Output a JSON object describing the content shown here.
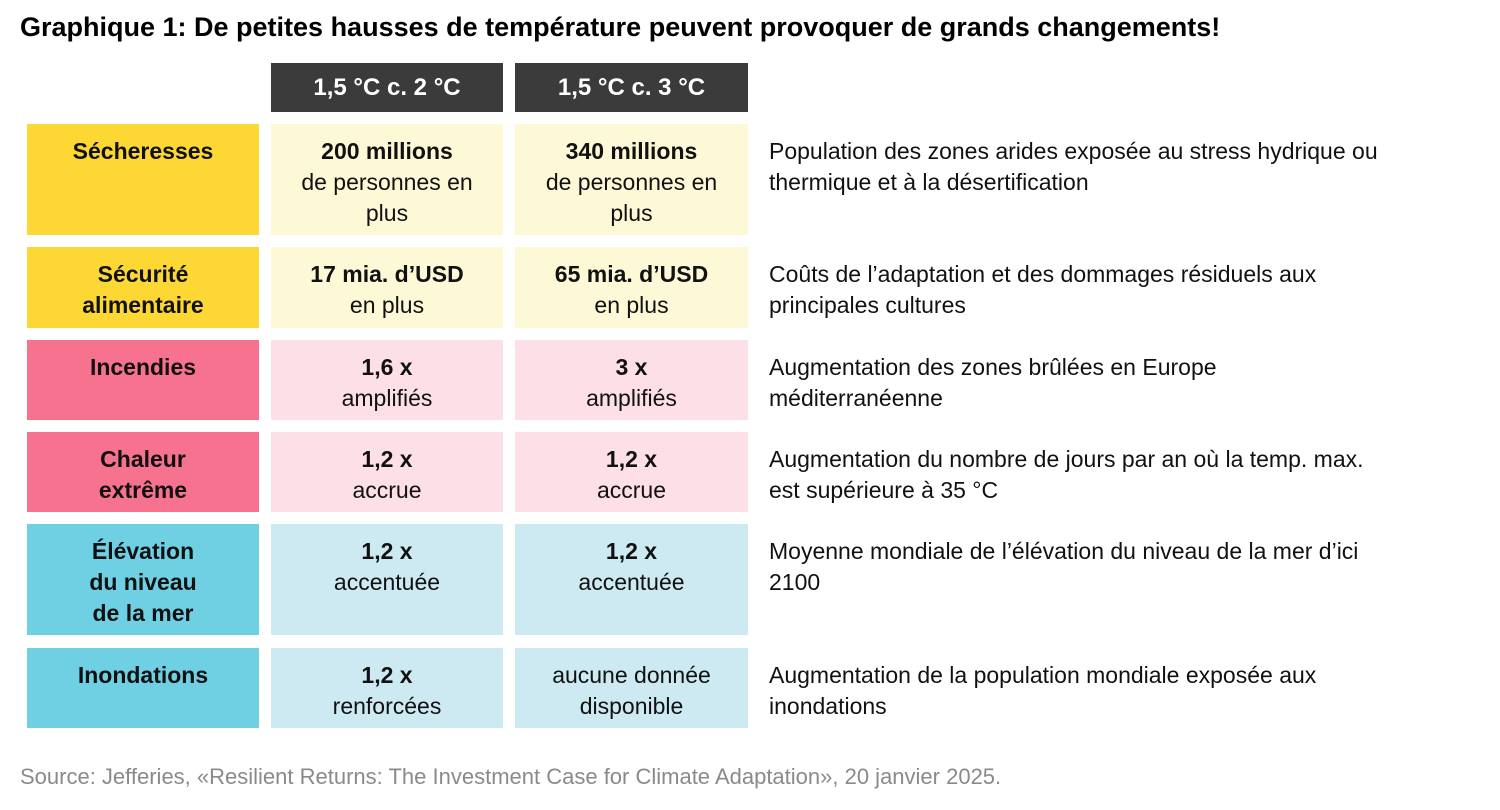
{
  "title": "Graphique 1: De petites hausses de température peuvent provoquer de grands changements!",
  "columns": [
    "1,5 °C c. 2 °C",
    "1,5 °C c. 3 °C"
  ],
  "rows": [
    {
      "label": "Sécheresses",
      "c1_strong": "200 millions",
      "c1_rest": "de personnes en plus",
      "c2_strong": "340 millions",
      "c2_rest": "de personnes en plus",
      "desc": "Population des zones arides exposée au stress hydrique ou thermique et à la désertification"
    },
    {
      "label": "Sécurité alimentaire",
      "c1_strong": "17 mia. d’USD",
      "c1_rest": "en plus",
      "c2_strong": "65 mia. d’USD",
      "c2_rest": "en plus",
      "desc": "Coûts de l’adaptation et des dommages résiduels aux principales cultures"
    },
    {
      "label": "Incendies",
      "c1_strong": "1,6 x",
      "c1_rest": "amplifiés",
      "c2_strong": "3 x",
      "c2_rest": "amplifiés",
      "desc": "Augmentation des zones brûlées en Europe méditerranéenne"
    },
    {
      "label": "Chaleur extrême",
      "c1_strong": "1,2 x",
      "c1_rest": "accrue",
      "c2_strong": "1,2 x",
      "c2_rest": "accrue",
      "desc": "Augmentation du nombre de jours par an où la temp. max. est supérieure à 35 °C"
    },
    {
      "label": "Élévation du niveau de la mer",
      "c1_strong": "1,2 x",
      "c1_rest": "accentuée",
      "c2_strong": "1,2 x",
      "c2_rest": "accentuée",
      "desc": "Moyenne mondiale de l’élévation du niveau de la mer d’ici 2100"
    },
    {
      "label": "Inondations",
      "c1_strong": "1,2 x",
      "c1_rest": "renforcées",
      "c2_strong": "",
      "c2_rest": "aucune donnée disponible",
      "desc": "Augmentation de la population mondiale exposée aux inondations"
    }
  ],
  "source": "Source: Jefferies, «Resilient Returns: The Investment Case for Climate Adaptation», 20 janvier 2025.",
  "colors": {
    "header_bg": "#3b3b3b",
    "yellow_label": "#fdd835",
    "yellow_value": "#fdf8d6",
    "pink_label": "#f7728f",
    "pink_value": "#fde0e7",
    "blue_label": "#6fd0e3",
    "blue_value": "#cdeaf2"
  }
}
